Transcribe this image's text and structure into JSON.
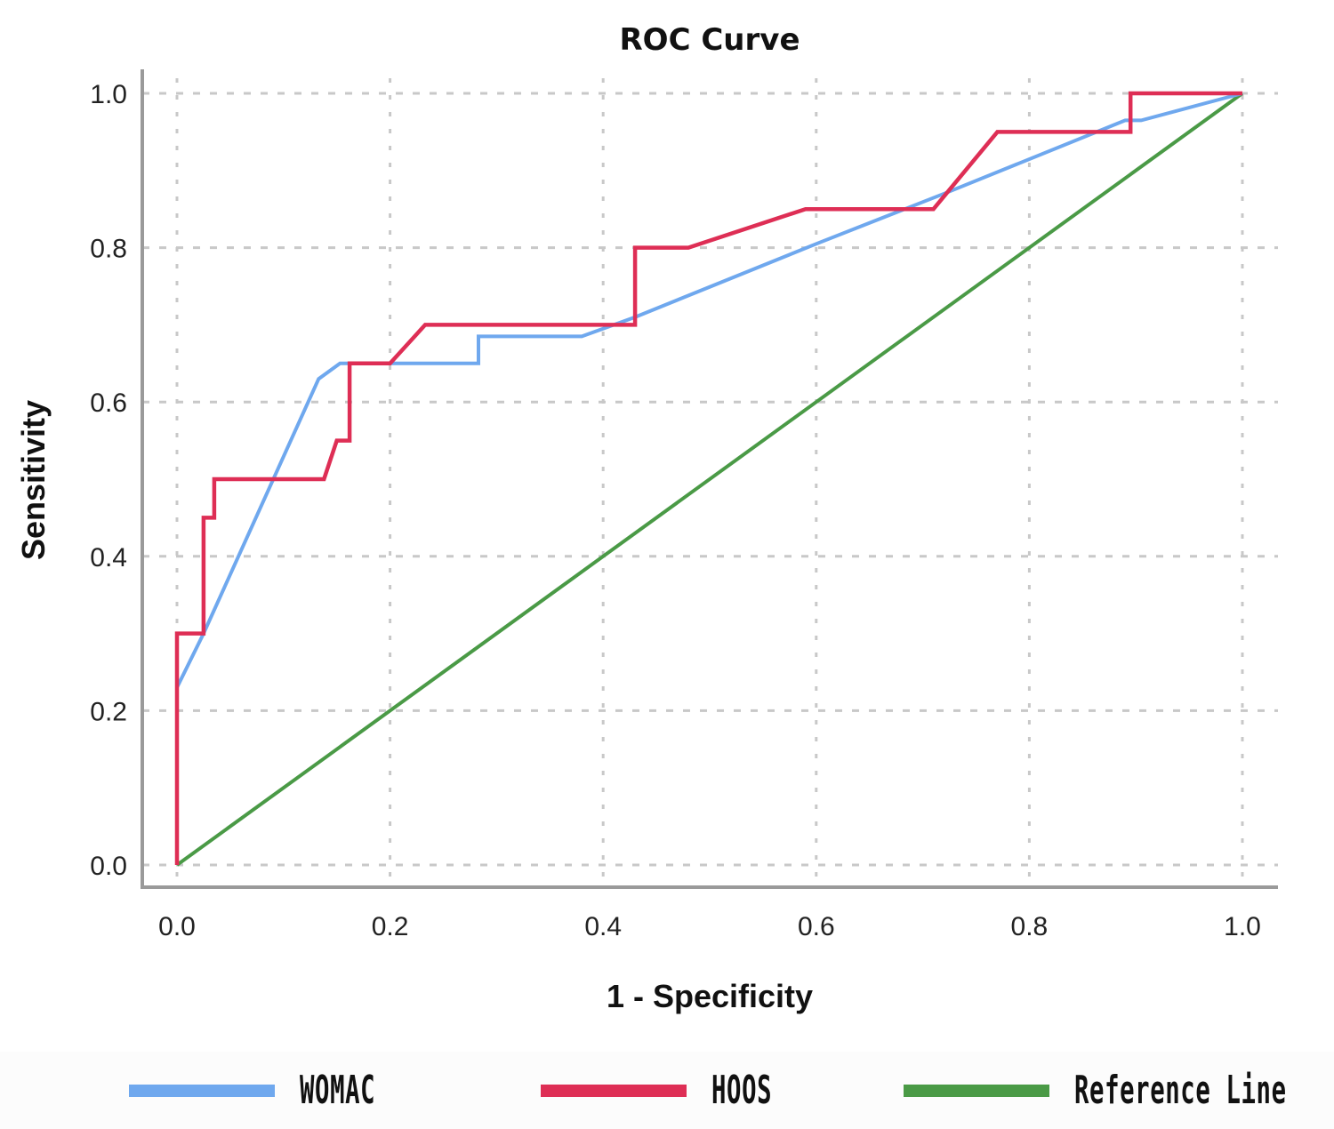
{
  "chart_data": {
    "type": "line",
    "title": "ROC Curve",
    "xlabel": "1 - Specificity",
    "ylabel": "Sensitivity",
    "xlim": [
      0,
      1
    ],
    "ylim": [
      0,
      1
    ],
    "x_ticks": [
      "0.0",
      "0.2",
      "0.4",
      "0.6",
      "0.8",
      "1.0"
    ],
    "y_ticks": [
      "0.0",
      "0.2",
      "0.4",
      "0.6",
      "0.8",
      "1.0"
    ],
    "tick_values": [
      0,
      0.2,
      0.4,
      0.6,
      0.8,
      1.0
    ],
    "grid": true,
    "legend_position": "bottom",
    "series": [
      {
        "name": "WOMAC",
        "color": "#6fa8ee",
        "points": [
          [
            0,
            0
          ],
          [
            0,
            0.23
          ],
          [
            0.025,
            0.3
          ],
          [
            0.133,
            0.63
          ],
          [
            0.153,
            0.65
          ],
          [
            0.283,
            0.65
          ],
          [
            0.283,
            0.685
          ],
          [
            0.38,
            0.685
          ],
          [
            0.43,
            0.71
          ],
          [
            0.6,
            0.805
          ],
          [
            0.72,
            0.87
          ],
          [
            0.89,
            0.965
          ],
          [
            0.905,
            0.965
          ],
          [
            1.0,
            1.0
          ]
        ]
      },
      {
        "name": "HOOS",
        "color": "#de2e55",
        "points": [
          [
            0,
            0
          ],
          [
            0,
            0.3
          ],
          [
            0.025,
            0.3
          ],
          [
            0.025,
            0.45
          ],
          [
            0.035,
            0.45
          ],
          [
            0.035,
            0.5
          ],
          [
            0.138,
            0.5
          ],
          [
            0.15,
            0.55
          ],
          [
            0.162,
            0.55
          ],
          [
            0.162,
            0.65
          ],
          [
            0.2,
            0.65
          ],
          [
            0.233,
            0.7
          ],
          [
            0.43,
            0.7
          ],
          [
            0.43,
            0.8
          ],
          [
            0.48,
            0.8
          ],
          [
            0.59,
            0.85
          ],
          [
            0.71,
            0.85
          ],
          [
            0.77,
            0.95
          ],
          [
            0.895,
            0.95
          ],
          [
            0.895,
            1.0
          ],
          [
            1.0,
            1.0
          ]
        ]
      },
      {
        "name": "Reference Line",
        "color": "#4a9a46",
        "points": [
          [
            0,
            0
          ],
          [
            1,
            1
          ]
        ]
      }
    ]
  },
  "legend": {
    "items": [
      {
        "label": "WOMAC",
        "color": "#6fa8ee"
      },
      {
        "label": "HOOS",
        "color": "#de2e55"
      },
      {
        "label": "Reference Line",
        "color": "#4a9a46"
      }
    ]
  }
}
